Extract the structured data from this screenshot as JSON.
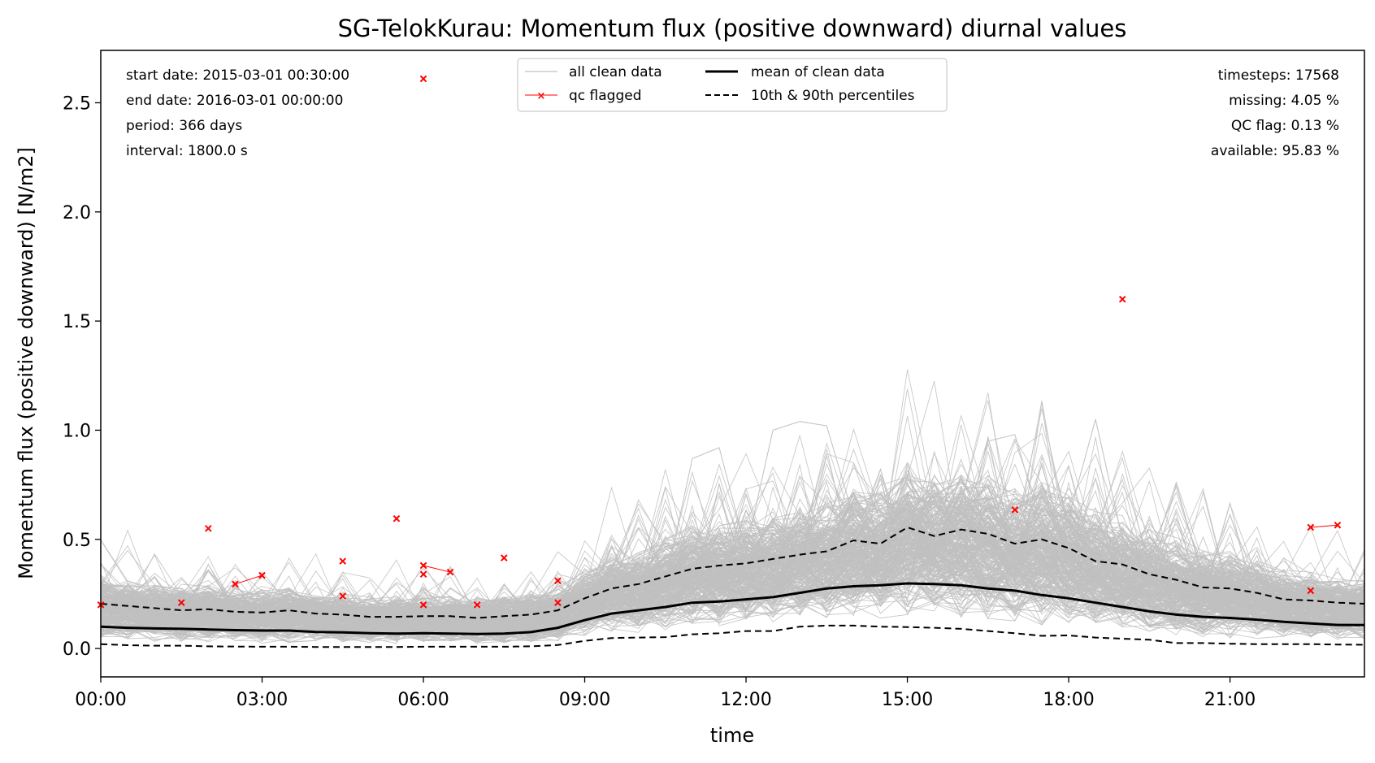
{
  "chart_data": {
    "type": "line",
    "title": "SG-TelokKurau: Momentum flux (positive downward) diurnal values",
    "xlabel": "time",
    "ylabel": "Momentum flux (positive downward) [N/m2]",
    "xlim": [
      0,
      23.5
    ],
    "ylim": [
      -0.13,
      2.74
    ],
    "x_ticks": [
      {
        "value": 0,
        "label": "00:00"
      },
      {
        "value": 3,
        "label": "03:00"
      },
      {
        "value": 6,
        "label": "06:00"
      },
      {
        "value": 9,
        "label": "09:00"
      },
      {
        "value": 12,
        "label": "12:00"
      },
      {
        "value": 15,
        "label": "15:00"
      },
      {
        "value": 18,
        "label": "18:00"
      },
      {
        "value": 21,
        "label": "21:00"
      }
    ],
    "y_ticks": [
      {
        "value": 0.0,
        "label": "0.0"
      },
      {
        "value": 0.5,
        "label": "0.5"
      },
      {
        "value": 1.0,
        "label": "1.0"
      },
      {
        "value": 1.5,
        "label": "1.5"
      },
      {
        "value": 2.0,
        "label": "2.0"
      },
      {
        "value": 2.5,
        "label": "2.5"
      }
    ],
    "x": [
      0,
      0.5,
      1,
      1.5,
      2,
      2.5,
      3,
      3.5,
      4,
      4.5,
      5,
      5.5,
      6,
      6.5,
      7,
      7.5,
      8,
      8.5,
      9,
      9.5,
      10,
      10.5,
      11,
      11.5,
      12,
      12.5,
      13,
      13.5,
      14,
      14.5,
      15,
      15.5,
      16,
      16.5,
      17,
      17.5,
      18,
      18.5,
      19,
      19.5,
      20,
      20.5,
      21,
      21.5,
      22,
      22.5,
      23,
      23.5
    ],
    "series": [
      {
        "name": "mean of clean data",
        "color": "#000000",
        "style": "solid",
        "values": [
          0.1,
          0.095,
          0.092,
          0.09,
          0.087,
          0.084,
          0.082,
          0.082,
          0.076,
          0.074,
          0.07,
          0.068,
          0.07,
          0.068,
          0.066,
          0.068,
          0.075,
          0.095,
          0.13,
          0.16,
          0.175,
          0.19,
          0.21,
          0.215,
          0.225,
          0.235,
          0.255,
          0.275,
          0.285,
          0.29,
          0.298,
          0.295,
          0.29,
          0.275,
          0.265,
          0.245,
          0.23,
          0.21,
          0.19,
          0.17,
          0.155,
          0.145,
          0.14,
          0.132,
          0.122,
          0.115,
          0.108,
          0.107
        ]
      },
      {
        "name": "10th percentile",
        "color": "#000000",
        "style": "dashed",
        "values": [
          0.02,
          0.015,
          0.013,
          0.013,
          0.01,
          0.009,
          0.008,
          0.008,
          0.007,
          0.007,
          0.007,
          0.007,
          0.008,
          0.008,
          0.008,
          0.008,
          0.01,
          0.016,
          0.035,
          0.048,
          0.05,
          0.052,
          0.065,
          0.07,
          0.08,
          0.08,
          0.1,
          0.105,
          0.105,
          0.1,
          0.098,
          0.095,
          0.09,
          0.08,
          0.07,
          0.058,
          0.06,
          0.05,
          0.045,
          0.04,
          0.025,
          0.025,
          0.022,
          0.02,
          0.02,
          0.02,
          0.018,
          0.017
        ]
      },
      {
        "name": "90th percentile",
        "color": "#000000",
        "style": "dashed",
        "values": [
          0.205,
          0.195,
          0.185,
          0.175,
          0.18,
          0.168,
          0.165,
          0.175,
          0.16,
          0.155,
          0.145,
          0.145,
          0.148,
          0.148,
          0.14,
          0.148,
          0.155,
          0.175,
          0.23,
          0.275,
          0.295,
          0.33,
          0.365,
          0.38,
          0.39,
          0.41,
          0.43,
          0.445,
          0.495,
          0.48,
          0.555,
          0.515,
          0.545,
          0.525,
          0.48,
          0.5,
          0.46,
          0.4,
          0.385,
          0.34,
          0.315,
          0.28,
          0.275,
          0.255,
          0.225,
          0.22,
          0.21,
          0.205
        ]
      }
    ],
    "qc_flagged_color": "#ff0000",
    "qc_flagged_points": [
      {
        "x": 0,
        "y": 0.2
      },
      {
        "x": 1.5,
        "y": 0.21
      },
      {
        "x": 2,
        "y": 0.55
      },
      {
        "x": 2.5,
        "y": 0.295
      },
      {
        "x": 3,
        "y": 0.335
      },
      {
        "x": 4.5,
        "y": 0.4
      },
      {
        "x": 4.5,
        "y": 0.24
      },
      {
        "x": 5.5,
        "y": 0.595
      },
      {
        "x": 6,
        "y": 2.61
      },
      {
        "x": 6,
        "y": 0.38
      },
      {
        "x": 6,
        "y": 0.34
      },
      {
        "x": 6,
        "y": 0.2
      },
      {
        "x": 6.5,
        "y": 0.35
      },
      {
        "x": 7,
        "y": 0.2
      },
      {
        "x": 7.5,
        "y": 0.415
      },
      {
        "x": 8.5,
        "y": 0.31
      },
      {
        "x": 8.5,
        "y": 0.21
      },
      {
        "x": 17,
        "y": 0.635
      },
      {
        "x": 19,
        "y": 1.6
      },
      {
        "x": 22.5,
        "y": 0.555
      },
      {
        "x": 23,
        "y": 0.565
      },
      {
        "x": 22.5,
        "y": 0.265
      }
    ],
    "qc_flagged_links": [
      [
        3,
        4
      ],
      [
        9,
        12
      ],
      [
        19,
        20
      ]
    ],
    "clean_data_color": "#c0c0c0",
    "clean_data_spikes": [
      {
        "x": [
          10.5,
          11,
          11.5,
          12
        ],
        "y": [
          0.3,
          0.87,
          0.92,
          0.45
        ]
      },
      {
        "x": [
          12,
          12.5,
          13,
          13.5,
          14
        ],
        "y": [
          0.45,
          1.0,
          1.04,
          1.02,
          0.6
        ]
      },
      {
        "x": [
          16,
          16.5,
          17,
          17.5
        ],
        "y": [
          0.5,
          0.95,
          0.98,
          0.55
        ]
      },
      {
        "x": [
          18,
          18.5,
          19
        ],
        "y": [
          0.6,
          1.05,
          0.5
        ]
      },
      {
        "x": [
          9.5,
          10,
          10.5
        ],
        "y": [
          0.3,
          0.55,
          0.35
        ]
      }
    ],
    "legend": {
      "placement": "top-center",
      "entries": [
        "all clean data",
        "mean of clean data",
        "qc flagged",
        "10th & 90th percentiles"
      ]
    },
    "grid": false
  },
  "info_left": [
    "start date: 2015-03-01 00:30:00",
    "end date: 2016-03-01 00:00:00",
    "period: 366 days",
    "interval: 1800.0 s"
  ],
  "info_right": [
    "timesteps: 17568",
    "missing: 4.05 %",
    "QC flag: 0.13 %",
    "available: 95.83 %"
  ]
}
